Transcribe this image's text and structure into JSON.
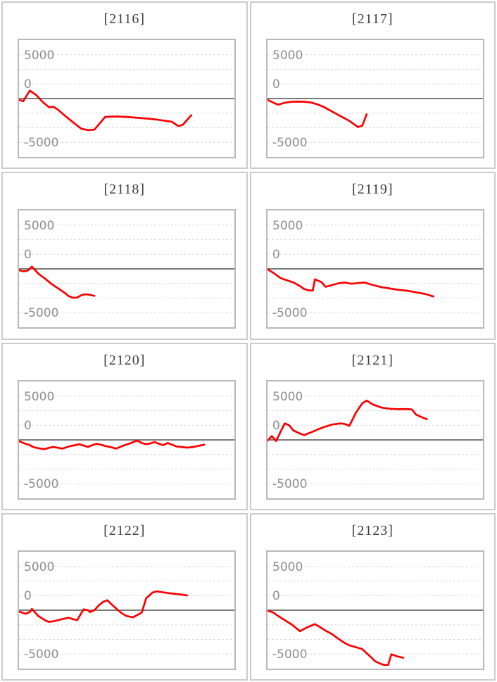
{
  "style": {
    "line_color": "#fb0000",
    "grid_color": "#d9d9d9",
    "zero_line_color": "#7a7a7a",
    "plot_border_color": "#b9b9b9",
    "tile_border_color": "#cbcbcb",
    "title_color": "#3d3d3d",
    "axis_label_color": "#8f8f8f"
  },
  "axis": {
    "tick_labels": [
      "5000",
      "0",
      "-5000"
    ],
    "tick_values": [
      5000,
      0,
      -5000
    ],
    "gridlines": [
      5000,
      3333,
      1667,
      -1667,
      -3333,
      -5000
    ],
    "ylim": [
      -6667,
      6667
    ],
    "zero_line": true,
    "grid_style": "dashed"
  },
  "chart_data": [
    {
      "type": "line",
      "title": "[2116]",
      "series": [
        {
          "color": "#fb0000",
          "points": [
            [
              0,
              -150
            ],
            [
              2,
              -300
            ],
            [
              5,
              900
            ],
            [
              8,
              400
            ],
            [
              11,
              -400
            ],
            [
              14,
              -1000
            ],
            [
              16,
              -950
            ],
            [
              18,
              -1250
            ],
            [
              22,
              -2100
            ],
            [
              26,
              -2900
            ],
            [
              29,
              -3450
            ],
            [
              32,
              -3600
            ],
            [
              35,
              -3550
            ],
            [
              40,
              -2100
            ],
            [
              45,
              -2050
            ],
            [
              50,
              -2100
            ],
            [
              55,
              -2200
            ],
            [
              60,
              -2300
            ],
            [
              64,
              -2400
            ],
            [
              68,
              -2550
            ],
            [
              71,
              -2650
            ],
            [
              74,
              -3150
            ],
            [
              76,
              -3000
            ],
            [
              80,
              -1900
            ]
          ]
        }
      ]
    },
    {
      "type": "line",
      "title": "[2117]",
      "series": [
        {
          "color": "#fb0000",
          "points": [
            [
              0,
              -150
            ],
            [
              3,
              -500
            ],
            [
              5,
              -700
            ],
            [
              8,
              -480
            ],
            [
              11,
              -380
            ],
            [
              14,
              -350
            ],
            [
              17,
              -360
            ],
            [
              20,
              -450
            ],
            [
              23,
              -650
            ],
            [
              26,
              -950
            ],
            [
              29,
              -1350
            ],
            [
              32,
              -1750
            ],
            [
              35,
              -2150
            ],
            [
              38,
              -2550
            ],
            [
              40,
              -2900
            ],
            [
              42,
              -3250
            ],
            [
              44,
              -3100
            ],
            [
              46,
              -1800
            ]
          ]
        }
      ]
    },
    {
      "type": "line",
      "title": "[2118]",
      "series": [
        {
          "color": "#fb0000",
          "points": [
            [
              0,
              -150
            ],
            [
              2,
              -280
            ],
            [
              4,
              -220
            ],
            [
              6,
              250
            ],
            [
              9,
              -550
            ],
            [
              12,
              -1100
            ],
            [
              15,
              -1700
            ],
            [
              18,
              -2200
            ],
            [
              21,
              -2700
            ],
            [
              23,
              -3100
            ],
            [
              25,
              -3300
            ],
            [
              27,
              -3280
            ],
            [
              29,
              -3000
            ],
            [
              31,
              -2900
            ],
            [
              33,
              -2980
            ],
            [
              35,
              -3080
            ]
          ]
        }
      ]
    },
    {
      "type": "line",
      "title": "[2119]",
      "series": [
        {
          "color": "#fb0000",
          "points": [
            [
              0,
              -50
            ],
            [
              3,
              -500
            ],
            [
              6,
              -1050
            ],
            [
              9,
              -1300
            ],
            [
              12,
              -1550
            ],
            [
              15,
              -1950
            ],
            [
              17,
              -2300
            ],
            [
              19,
              -2450
            ],
            [
              21,
              -2480
            ],
            [
              22,
              -1200
            ],
            [
              25,
              -1500
            ],
            [
              27,
              -2050
            ],
            [
              30,
              -1850
            ],
            [
              33,
              -1650
            ],
            [
              36,
              -1560
            ],
            [
              39,
              -1700
            ],
            [
              42,
              -1620
            ],
            [
              45,
              -1560
            ],
            [
              49,
              -1850
            ],
            [
              53,
              -2100
            ],
            [
              57,
              -2250
            ],
            [
              61,
              -2400
            ],
            [
              65,
              -2500
            ],
            [
              69,
              -2680
            ],
            [
              73,
              -2850
            ],
            [
              77,
              -3150
            ]
          ]
        }
      ]
    },
    {
      "type": "line",
      "title": "[2120]",
      "series": [
        {
          "color": "#fb0000",
          "points": [
            [
              0,
              -150
            ],
            [
              2,
              -350
            ],
            [
              5,
              -600
            ],
            [
              7,
              -850
            ],
            [
              10,
              -1000
            ],
            [
              12,
              -1050
            ],
            [
              14,
              -900
            ],
            [
              16,
              -800
            ],
            [
              18,
              -900
            ],
            [
              20,
              -1000
            ],
            [
              22,
              -850
            ],
            [
              24,
              -700
            ],
            [
              26,
              -600
            ],
            [
              28,
              -500
            ],
            [
              30,
              -650
            ],
            [
              32,
              -800
            ],
            [
              34,
              -600
            ],
            [
              36,
              -450
            ],
            [
              38,
              -550
            ],
            [
              40,
              -700
            ],
            [
              43,
              -850
            ],
            [
              45,
              -1000
            ],
            [
              47,
              -800
            ],
            [
              49,
              -600
            ],
            [
              51,
              -450
            ],
            [
              53,
              -250
            ],
            [
              55,
              -100
            ],
            [
              57,
              -350
            ],
            [
              59,
              -500
            ],
            [
              61,
              -400
            ],
            [
              63,
              -250
            ],
            [
              65,
              -450
            ],
            [
              67,
              -600
            ],
            [
              69,
              -350
            ],
            [
              71,
              -550
            ],
            [
              73,
              -750
            ],
            [
              75,
              -800
            ],
            [
              78,
              -880
            ],
            [
              81,
              -800
            ],
            [
              84,
              -650
            ],
            [
              86,
              -550
            ]
          ]
        }
      ]
    },
    {
      "type": "line",
      "title": "[2121]",
      "series": [
        {
          "color": "#fb0000",
          "points": [
            [
              0,
              -100
            ],
            [
              2,
              430
            ],
            [
              4,
              -130
            ],
            [
              6,
              900
            ],
            [
              8,
              1880
            ],
            [
              10,
              1690
            ],
            [
              12,
              1080
            ],
            [
              15,
              730
            ],
            [
              17,
              540
            ],
            [
              21,
              940
            ],
            [
              24,
              1260
            ],
            [
              27,
              1530
            ],
            [
              30,
              1750
            ],
            [
              34,
              1880
            ],
            [
              36,
              1800
            ],
            [
              38,
              1610
            ],
            [
              41,
              3090
            ],
            [
              44,
              4170
            ],
            [
              46,
              4490
            ],
            [
              49,
              4030
            ],
            [
              53,
              3680
            ],
            [
              57,
              3550
            ],
            [
              61,
              3500
            ],
            [
              65,
              3520
            ],
            [
              67,
              3470
            ],
            [
              69,
              2880
            ],
            [
              72,
              2550
            ],
            [
              74,
              2370
            ]
          ]
        }
      ]
    },
    {
      "type": "line",
      "title": "[2122]",
      "series": [
        {
          "color": "#fb0000",
          "points": [
            [
              0,
              -150
            ],
            [
              3,
              -400
            ],
            [
              5,
              -215
            ],
            [
              6,
              150
            ],
            [
              9,
              -670
            ],
            [
              12,
              -1130
            ],
            [
              14,
              -1340
            ],
            [
              17,
              -1210
            ],
            [
              20,
              -1020
            ],
            [
              23,
              -860
            ],
            [
              25,
              -1020
            ],
            [
              27,
              -1130
            ],
            [
              30,
              100
            ],
            [
              32,
              0
            ],
            [
              33,
              -215
            ],
            [
              35,
              0
            ],
            [
              37,
              540
            ],
            [
              39,
              940
            ],
            [
              41,
              1130
            ],
            [
              43,
              670
            ],
            [
              46,
              0
            ],
            [
              48,
              -400
            ],
            [
              50,
              -670
            ],
            [
              53,
              -810
            ],
            [
              55,
              -540
            ],
            [
              57,
              -270
            ],
            [
              59,
              1340
            ],
            [
              62,
              2020
            ],
            [
              64,
              2150
            ],
            [
              66,
              2070
            ],
            [
              69,
              1960
            ],
            [
              72,
              1880
            ],
            [
              75,
              1800
            ],
            [
              78,
              1690
            ]
          ]
        }
      ]
    },
    {
      "type": "line",
      "title": "[2123]",
      "series": [
        {
          "color": "#fb0000",
          "points": [
            [
              0,
              -50
            ],
            [
              2.5,
              -240
            ],
            [
              5,
              -670
            ],
            [
              8,
              -1130
            ],
            [
              11,
              -1590
            ],
            [
              13.5,
              -2070
            ],
            [
              15,
              -2390
            ],
            [
              18.5,
              -1940
            ],
            [
              22,
              -1590
            ],
            [
              24.5,
              -1940
            ],
            [
              27,
              -2340
            ],
            [
              30,
              -2740
            ],
            [
              33,
              -3280
            ],
            [
              35.5,
              -3690
            ],
            [
              38,
              -4010
            ],
            [
              41,
              -4220
            ],
            [
              44,
              -4440
            ],
            [
              46,
              -4900
            ],
            [
              48,
              -5350
            ],
            [
              50,
              -5840
            ],
            [
              52.5,
              -6110
            ],
            [
              54,
              -6240
            ],
            [
              56,
              -6240
            ],
            [
              57.5,
              -5030
            ],
            [
              60,
              -5250
            ],
            [
              63,
              -5430
            ]
          ]
        }
      ]
    }
  ]
}
